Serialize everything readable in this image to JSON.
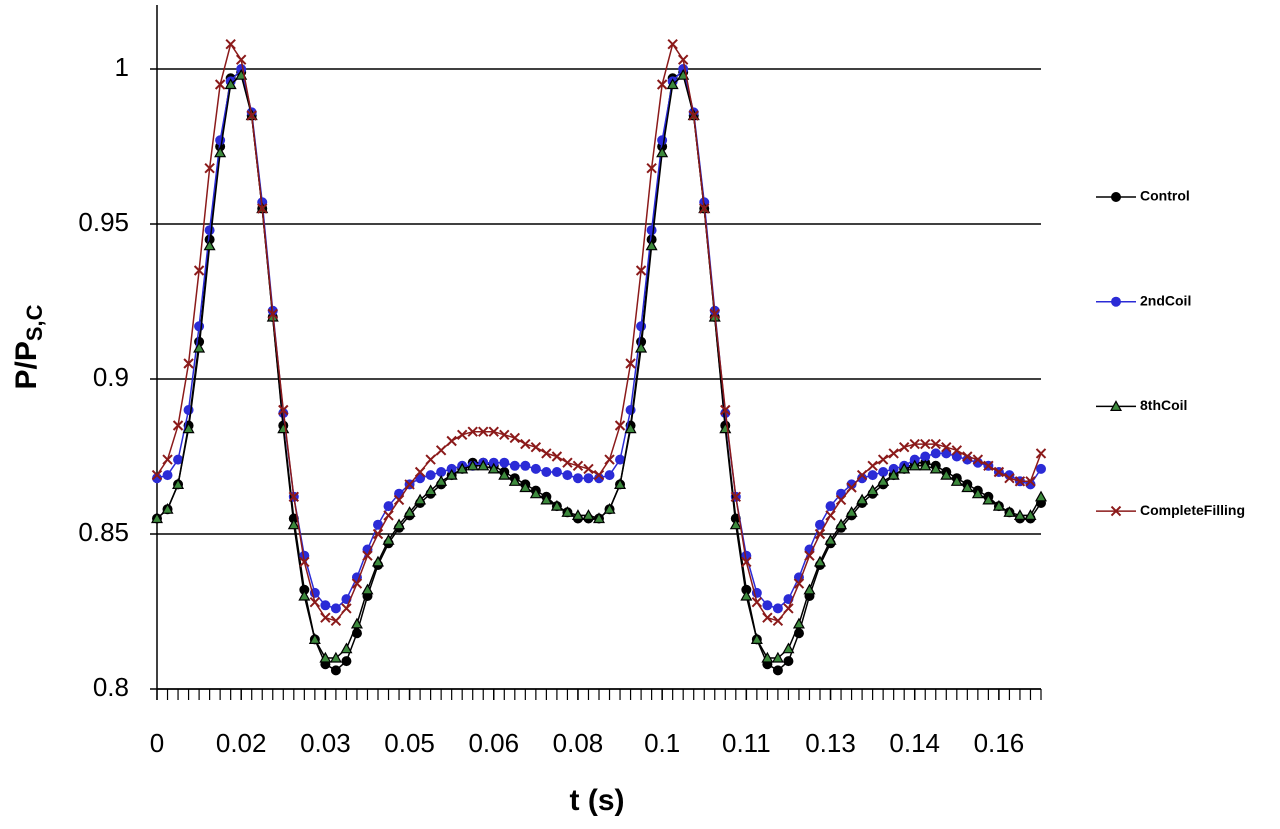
{
  "chart_data": {
    "type": "line",
    "xlabel": "t (s)",
    "ylabel": "P/P",
    "ylabel_sub": "S,C",
    "xlim": [
      0,
      0.168
    ],
    "ylim": [
      0.8,
      1.02
    ],
    "xticks": [
      {
        "value": 0,
        "label": "0"
      },
      {
        "value": 0.016,
        "label": "0.02"
      },
      {
        "value": 0.032,
        "label": "0.03"
      },
      {
        "value": 0.048,
        "label": "0.05"
      },
      {
        "value": 0.064,
        "label": "0.06"
      },
      {
        "value": 0.08,
        "label": "0.08"
      },
      {
        "value": 0.096,
        "label": "0.1"
      },
      {
        "value": 0.112,
        "label": "0.11"
      },
      {
        "value": 0.128,
        "label": "0.13"
      },
      {
        "value": 0.144,
        "label": "0.14"
      },
      {
        "value": 0.16,
        "label": "0.16"
      }
    ],
    "yticks": [
      0.8,
      0.85,
      0.9,
      0.95,
      1
    ],
    "grid": true,
    "legend": "right",
    "x": [
      0,
      0.002,
      0.004,
      0.006,
      0.008,
      0.01,
      0.012,
      0.014,
      0.016,
      0.018,
      0.02,
      0.022,
      0.024,
      0.026,
      0.028,
      0.03,
      0.032,
      0.034,
      0.036,
      0.038,
      0.04,
      0.042,
      0.044,
      0.046,
      0.048,
      0.05,
      0.052,
      0.054,
      0.056,
      0.058,
      0.06,
      0.062,
      0.064,
      0.066,
      0.068,
      0.07,
      0.072,
      0.074,
      0.076,
      0.078,
      0.08,
      0.082,
      0.084,
      0.086,
      0.088,
      0.09,
      0.092,
      0.094,
      0.096,
      0.098,
      0.1,
      0.102,
      0.104,
      0.106,
      0.108,
      0.11,
      0.112,
      0.114,
      0.116,
      0.118,
      0.12,
      0.122,
      0.124,
      0.126,
      0.128,
      0.13,
      0.132,
      0.134,
      0.136,
      0.138,
      0.14,
      0.142,
      0.144,
      0.146,
      0.148,
      0.15,
      0.152,
      0.154,
      0.156,
      0.158,
      0.16,
      0.162,
      0.164,
      0.166,
      0.168
    ],
    "series": [
      {
        "name": "Control",
        "color": "#000000",
        "marker": "circle",
        "values": [
          0.855,
          0.858,
          0.866,
          0.885,
          0.912,
          0.945,
          0.975,
          0.997,
          0.999,
          0.985,
          0.955,
          0.92,
          0.885,
          0.855,
          0.832,
          0.816,
          0.808,
          0.806,
          0.809,
          0.818,
          0.83,
          0.84,
          0.847,
          0.852,
          0.856,
          0.86,
          0.863,
          0.866,
          0.869,
          0.871,
          0.873,
          0.873,
          0.872,
          0.87,
          0.868,
          0.866,
          0.864,
          0.862,
          0.859,
          0.857,
          0.855,
          0.855,
          0.855,
          0.858,
          0.866,
          0.885,
          0.912,
          0.945,
          0.975,
          0.997,
          0.999,
          0.985,
          0.955,
          0.92,
          0.885,
          0.855,
          0.832,
          0.816,
          0.808,
          0.806,
          0.809,
          0.818,
          0.83,
          0.84,
          0.847,
          0.852,
          0.856,
          0.86,
          0.863,
          0.866,
          0.869,
          0.871,
          0.873,
          0.873,
          0.872,
          0.87,
          0.868,
          0.866,
          0.864,
          0.862,
          0.859,
          0.857,
          0.855,
          0.855,
          0.86
        ]
      },
      {
        "name": "2ndCoil",
        "color": "#2b2bd6",
        "marker": "circle",
        "values": [
          0.868,
          0.869,
          0.874,
          0.89,
          0.917,
          0.948,
          0.977,
          0.996,
          1.0,
          0.986,
          0.957,
          0.922,
          0.889,
          0.862,
          0.843,
          0.831,
          0.827,
          0.826,
          0.829,
          0.836,
          0.845,
          0.853,
          0.859,
          0.863,
          0.866,
          0.868,
          0.869,
          0.87,
          0.871,
          0.872,
          0.872,
          0.873,
          0.873,
          0.873,
          0.872,
          0.872,
          0.871,
          0.87,
          0.87,
          0.869,
          0.868,
          0.868,
          0.868,
          0.869,
          0.874,
          0.89,
          0.917,
          0.948,
          0.977,
          0.996,
          1.0,
          0.986,
          0.957,
          0.922,
          0.889,
          0.862,
          0.843,
          0.831,
          0.827,
          0.826,
          0.829,
          0.836,
          0.845,
          0.853,
          0.859,
          0.863,
          0.866,
          0.868,
          0.869,
          0.87,
          0.871,
          0.872,
          0.874,
          0.875,
          0.876,
          0.876,
          0.875,
          0.874,
          0.873,
          0.872,
          0.87,
          0.869,
          0.867,
          0.866,
          0.871
        ]
      },
      {
        "name": "8thCoil",
        "color": "#3d8a3d",
        "marker": "triangle",
        "values": [
          0.855,
          0.858,
          0.866,
          0.884,
          0.91,
          0.943,
          0.973,
          0.995,
          0.998,
          0.985,
          0.955,
          0.92,
          0.884,
          0.853,
          0.83,
          0.816,
          0.81,
          0.81,
          0.813,
          0.821,
          0.832,
          0.841,
          0.848,
          0.853,
          0.857,
          0.861,
          0.864,
          0.867,
          0.869,
          0.871,
          0.872,
          0.872,
          0.871,
          0.869,
          0.867,
          0.865,
          0.863,
          0.861,
          0.859,
          0.857,
          0.856,
          0.856,
          0.855,
          0.858,
          0.866,
          0.884,
          0.91,
          0.943,
          0.973,
          0.995,
          0.998,
          0.985,
          0.955,
          0.92,
          0.884,
          0.853,
          0.83,
          0.816,
          0.81,
          0.81,
          0.813,
          0.821,
          0.832,
          0.841,
          0.848,
          0.853,
          0.857,
          0.861,
          0.864,
          0.867,
          0.869,
          0.871,
          0.872,
          0.872,
          0.871,
          0.869,
          0.867,
          0.865,
          0.863,
          0.861,
          0.859,
          0.857,
          0.856,
          0.856,
          0.862
        ]
      },
      {
        "name": "CompleteFilling",
        "color": "#8b1a1a",
        "marker": "x",
        "values": [
          0.869,
          0.874,
          0.885,
          0.905,
          0.935,
          0.968,
          0.995,
          1.008,
          1.003,
          0.985,
          0.955,
          0.921,
          0.89,
          0.862,
          0.841,
          0.828,
          0.823,
          0.822,
          0.826,
          0.834,
          0.843,
          0.85,
          0.856,
          0.861,
          0.866,
          0.87,
          0.874,
          0.877,
          0.88,
          0.882,
          0.883,
          0.883,
          0.883,
          0.882,
          0.881,
          0.879,
          0.878,
          0.876,
          0.875,
          0.873,
          0.872,
          0.871,
          0.869,
          0.874,
          0.885,
          0.905,
          0.935,
          0.968,
          0.995,
          1.008,
          1.003,
          0.985,
          0.955,
          0.921,
          0.89,
          0.862,
          0.841,
          0.828,
          0.823,
          0.822,
          0.826,
          0.834,
          0.843,
          0.85,
          0.856,
          0.861,
          0.865,
          0.869,
          0.872,
          0.874,
          0.876,
          0.878,
          0.879,
          0.879,
          0.879,
          0.878,
          0.877,
          0.875,
          0.874,
          0.872,
          0.87,
          0.868,
          0.867,
          0.867,
          0.876
        ]
      }
    ]
  }
}
